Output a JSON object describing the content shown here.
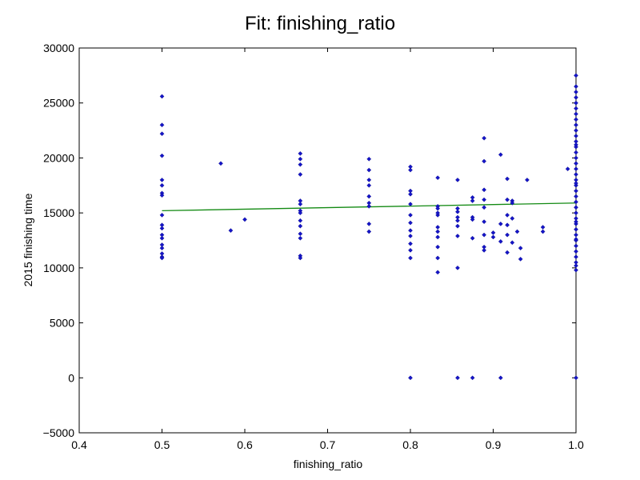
{
  "chart_data": {
    "type": "scatter",
    "title": "Fit: finishing_ratio",
    "xlabel": "finishing_ratio",
    "ylabel": "2015 finishing time",
    "xlim": [
      0.4,
      1.0
    ],
    "ylim": [
      -5000,
      30000
    ],
    "x_ticks": [
      "0.4",
      "0.5",
      "0.6",
      "0.7",
      "0.8",
      "0.9",
      "1.0"
    ],
    "y_ticks": [
      "−5000",
      "0",
      "5000",
      "10000",
      "15000",
      "20000",
      "25000",
      "30000"
    ],
    "grid": false,
    "legend": "none",
    "colors": {
      "points": "#1414c8",
      "fit": "#138a13",
      "axes": "#000000"
    },
    "series": [
      {
        "kind": "points",
        "x": [
          0.5,
          0.5,
          0.5,
          0.5,
          0.5,
          0.5,
          0.5,
          0.5,
          0.5,
          0.5,
          0.5,
          0.5,
          0.5,
          0.5,
          0.5,
          0.5,
          0.5,
          0.5,
          0.571,
          0.583,
          0.6,
          0.667,
          0.667,
          0.667,
          0.667,
          0.667,
          0.667,
          0.667,
          0.667,
          0.667,
          0.667,
          0.667,
          0.667,
          0.667,
          0.667,
          0.75,
          0.75,
          0.75,
          0.75,
          0.75,
          0.75,
          0.75,
          0.75,
          0.75,
          0.8,
          0.8,
          0.8,
          0.8,
          0.8,
          0.8,
          0.8,
          0.8,
          0.8,
          0.8,
          0.8,
          0.8,
          0.8,
          0.833,
          0.833,
          0.833,
          0.833,
          0.833,
          0.833,
          0.833,
          0.833,
          0.833,
          0.833,
          0.833,
          0.857,
          0.857,
          0.857,
          0.857,
          0.857,
          0.857,
          0.857,
          0.857,
          0.857,
          0.875,
          0.875,
          0.875,
          0.875,
          0.875,
          0.875,
          0.889,
          0.889,
          0.889,
          0.889,
          0.889,
          0.889,
          0.889,
          0.889,
          0.889,
          0.9,
          0.9,
          0.909,
          0.909,
          0.909,
          0.909,
          0.917,
          0.917,
          0.917,
          0.917,
          0.917,
          0.917,
          0.923,
          0.923,
          0.923,
          0.923,
          0.929,
          0.933,
          0.933,
          0.941,
          0.96,
          0.96,
          0.99,
          1.0,
          1.0,
          1.0,
          1.0,
          1.0,
          1.0,
          1.0,
          1.0,
          1.0,
          1.0,
          1.0,
          1.0,
          1.0,
          1.0,
          1.0,
          1.0,
          1.0,
          1.0,
          1.0,
          1.0,
          1.0,
          1.0,
          1.0,
          1.0,
          1.0,
          1.0,
          1.0,
          1.0,
          1.0,
          1.0,
          1.0,
          1.0,
          1.0,
          1.0,
          1.0,
          1.0,
          1.0,
          1.0,
          1.0,
          1.0,
          1.0
        ],
        "y": [
          25600,
          23000,
          22200,
          20200,
          18000,
          17500,
          16800,
          16600,
          14800,
          13900,
          13600,
          13000,
          12700,
          12100,
          11800,
          11300,
          11000,
          10900,
          19500,
          13400,
          14400,
          20400,
          19900,
          19400,
          18500,
          16100,
          15800,
          15200,
          15000,
          14300,
          13800,
          13100,
          12700,
          11100,
          10900,
          19900,
          18900,
          18000,
          17500,
          16500,
          15600,
          14000,
          13300,
          15900,
          19200,
          18900,
          17000,
          16700,
          15800,
          14800,
          14100,
          13400,
          12900,
          12200,
          11600,
          10900,
          0,
          18200,
          15600,
          15400,
          14800,
          13700,
          13300,
          12800,
          11900,
          10900,
          9600,
          15000,
          18000,
          15400,
          15100,
          14600,
          14300,
          13800,
          12900,
          10000,
          0,
          16400,
          16100,
          14600,
          14400,
          12700,
          0,
          21800,
          19700,
          17100,
          16200,
          15500,
          14200,
          13000,
          11900,
          11600,
          12800,
          13200,
          20300,
          14000,
          12400,
          0,
          18100,
          16200,
          14800,
          13900,
          13000,
          11400,
          16100,
          15900,
          14500,
          12300,
          13300,
          11800,
          10800,
          18000,
          13700,
          13300,
          19000,
          27500,
          26500,
          26000,
          25500,
          25000,
          24500,
          24000,
          23500,
          23000,
          22500,
          22000,
          21500,
          21000,
          20500,
          20000,
          19500,
          19000,
          18500,
          18000,
          17500,
          17000,
          16500,
          16000,
          15500,
          15000,
          14500,
          14000,
          13500,
          13000,
          12500,
          12000,
          11500,
          11000,
          10500,
          10200,
          9800,
          0,
          21200,
          17700,
          14200,
          12600
        ]
      },
      {
        "kind": "fit",
        "x": [
          0.5,
          1.0
        ],
        "y": [
          15200,
          15900
        ]
      }
    ]
  }
}
